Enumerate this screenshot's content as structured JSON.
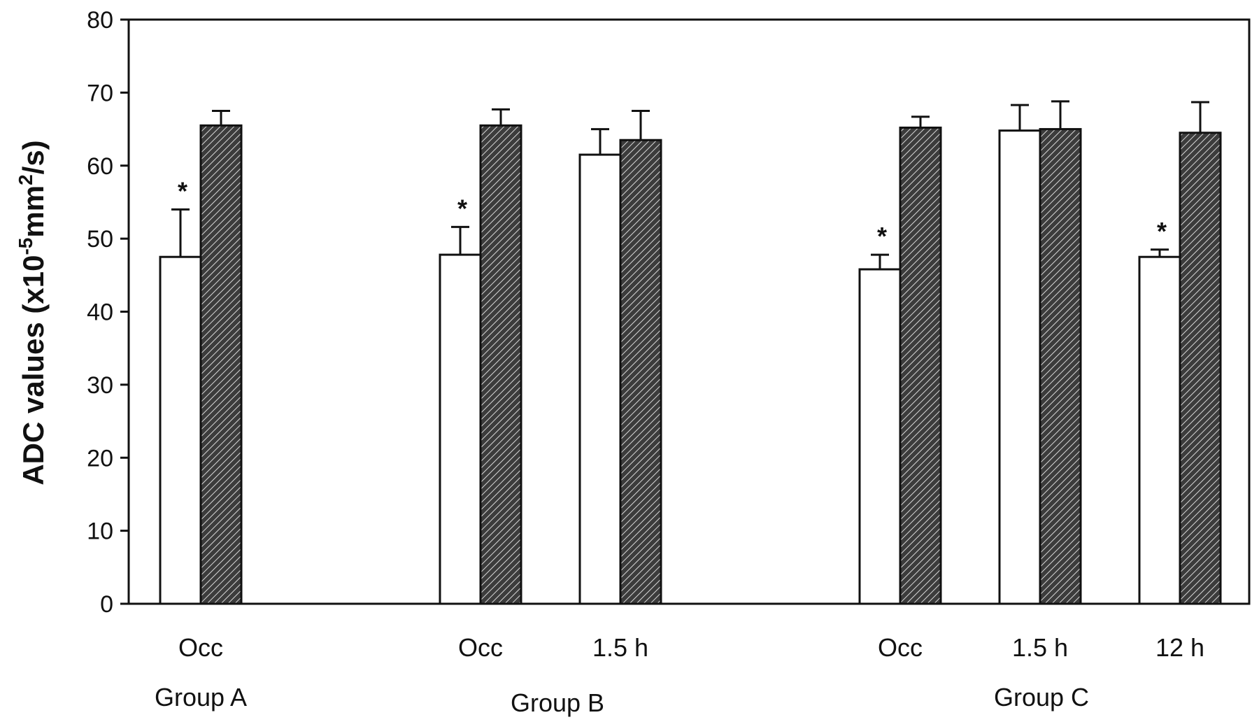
{
  "chart_data": {
    "type": "bar",
    "ylabel_prefix": "ADC values (x10",
    "ylabel_exp1": "-5",
    "ylabel_mid": "mm",
    "ylabel_exp2": "2",
    "ylabel_suffix": "/s)",
    "ylim": [
      0,
      80
    ],
    "yticks": [
      0,
      10,
      20,
      30,
      40,
      50,
      60,
      70,
      80
    ],
    "grid": false,
    "legend": "none",
    "colors": {
      "open": "#ffffff",
      "hatched": "#4a4a4a",
      "line": "#111111"
    },
    "series_styles": [
      "open",
      "hatched"
    ],
    "groups": [
      {
        "label": "Group A",
        "categories": [
          {
            "label": "Occ",
            "values": [
              47.5,
              65.5
            ],
            "errors": [
              6.5,
              2.0
            ],
            "asterisks": [
              "*",
              ""
            ]
          }
        ]
      },
      {
        "label": "Group B",
        "categories": [
          {
            "label": "Occ",
            "values": [
              47.8,
              65.5
            ],
            "errors": [
              3.8,
              2.2
            ],
            "asterisks": [
              "*",
              ""
            ]
          },
          {
            "label": "1.5 h",
            "values": [
              61.5,
              63.5
            ],
            "errors": [
              3.5,
              4.0
            ],
            "asterisks": [
              "",
              ""
            ]
          }
        ]
      },
      {
        "label": "Group C",
        "categories": [
          {
            "label": "Occ",
            "values": [
              45.8,
              65.2
            ],
            "errors": [
              2.0,
              1.5
            ],
            "asterisks": [
              "*",
              ""
            ]
          },
          {
            "label": "1.5 h",
            "values": [
              64.8,
              65.0
            ],
            "errors": [
              3.5,
              3.8
            ],
            "asterisks": [
              "",
              ""
            ]
          },
          {
            "label": "12 h",
            "values": [
              47.5,
              64.5
            ],
            "errors": [
              1.0,
              4.2
            ],
            "asterisks": [
              "*",
              ""
            ]
          }
        ]
      }
    ]
  }
}
